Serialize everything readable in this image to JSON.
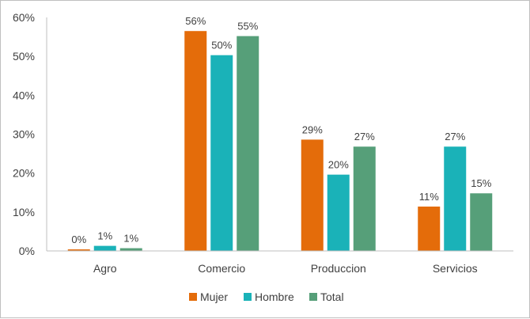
{
  "chart_data": {
    "type": "bar",
    "title": "",
    "xlabel": "",
    "ylabel": "",
    "categories": [
      "Agro",
      "Comercio",
      "Produccion",
      "Servicios"
    ],
    "series": [
      {
        "name": "Mujer",
        "color": "#E46C0A",
        "values": [
          0.4,
          56.5,
          28.6,
          11.4
        ],
        "labels": [
          "0%",
          "56%",
          "29%",
          "11%"
        ]
      },
      {
        "name": "Hombre",
        "color": "#1AB2B8",
        "values": [
          1.3,
          50.3,
          19.6,
          26.8
        ],
        "labels": [
          "1%",
          "50%",
          "20%",
          "27%"
        ]
      },
      {
        "name": "Total",
        "color": "#569F79",
        "values": [
          0.7,
          55.2,
          26.8,
          14.8
        ],
        "labels": [
          "1%",
          "55%",
          "27%",
          "15%"
        ]
      }
    ],
    "ylim": [
      0,
      60
    ],
    "yticks": [
      0,
      10,
      20,
      30,
      40,
      50,
      60
    ],
    "ytick_labels": [
      "0%",
      "10%",
      "20%",
      "30%",
      "40%",
      "50%",
      "60%"
    ],
    "grid": false,
    "legend": "bottom"
  }
}
